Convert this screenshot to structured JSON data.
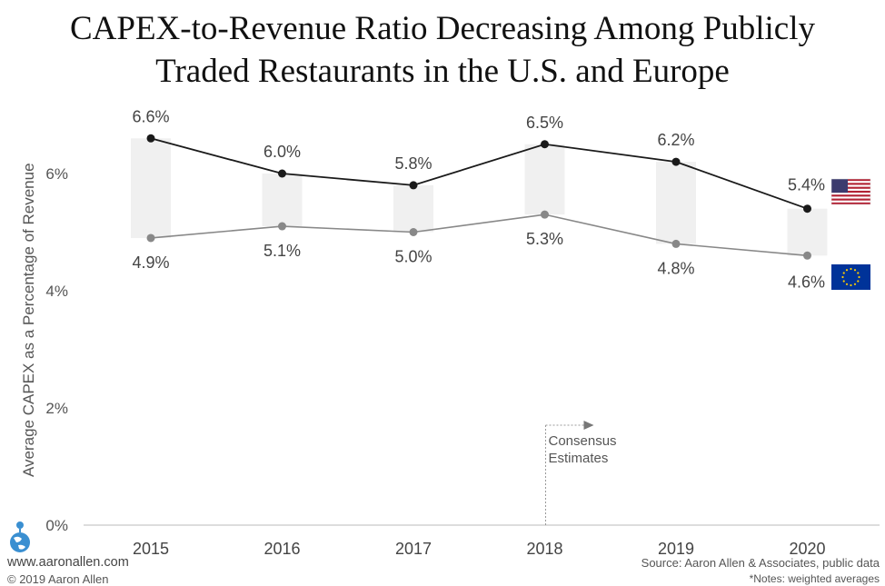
{
  "title_lines": [
    "CAPEX-to-Revenue Ratio Decreasing Among Publicly",
    "Traded Restaurants in the U.S. and Europe"
  ],
  "annotation": [
    "Consensus",
    "Estimates"
  ],
  "footer": {
    "website": "www.aaronallen.com",
    "copyright": "© 2019 Aaron Allen",
    "source": "Source: Aaron Allen & Associates, public data",
    "notes": "*Notes: weighted averages"
  },
  "colors": {
    "us_line": "#1a1a1a",
    "eu_line": "#888888",
    "band": "#f0f0f0",
    "axis": "#bbbbbb",
    "us_flag_red": "#b22234",
    "us_flag_blue": "#3c3b6e",
    "eu_flag_blue": "#003399",
    "eu_flag_star": "#ffcc00"
  },
  "chart_data": {
    "type": "line",
    "categories": [
      "2015",
      "2016",
      "2017",
      "2018",
      "2019",
      "2020"
    ],
    "series": [
      {
        "key": "us",
        "values": [
          6.6,
          6.0,
          5.8,
          6.5,
          6.2,
          5.4
        ],
        "labels": [
          "6.6%",
          "6.0%",
          "5.8%",
          "6.5%",
          "6.2%",
          "5.4%"
        ]
      },
      {
        "key": "eu",
        "values": [
          4.9,
          5.1,
          5.0,
          5.3,
          4.8,
          4.6
        ],
        "labels": [
          "4.9%",
          "5.1%",
          "5.0%",
          "5.3%",
          "4.8%",
          "4.6%"
        ]
      }
    ],
    "ylabel": "Average CAPEX as a Percentage of Revenue",
    "yticks": [
      0,
      2,
      4,
      6
    ],
    "ytick_labels": [
      "0%",
      "2%",
      "4%",
      "6%"
    ],
    "ylim": [
      0,
      7
    ],
    "grid": false,
    "legend": "flags at right end of lines",
    "estimates_start": "2018"
  }
}
